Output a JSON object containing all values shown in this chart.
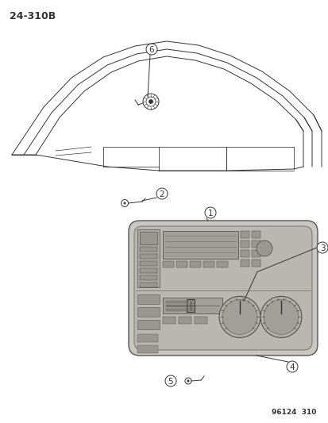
{
  "bg_color": "#ffffff",
  "page_label": "24-310B",
  "footer_label": "96124  310",
  "title_fontsize": 9,
  "footer_fontsize": 6.5,
  "callout_fontsize": 7.5,
  "lc": "#333333",
  "lw": 0.7
}
